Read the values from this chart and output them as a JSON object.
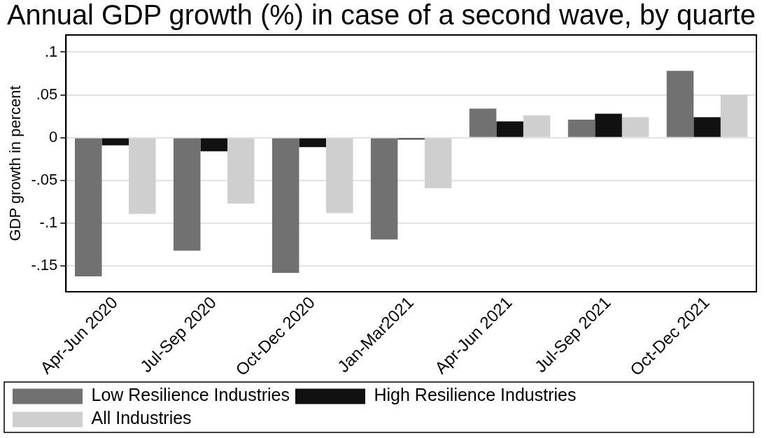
{
  "chart_data": {
    "type": "bar",
    "title": "Annual GDP growth (%) in case of a second wave, by quarte",
    "ylabel": "GDP growth in percent",
    "categories": [
      "Apr-Jun 2020",
      "Jul-Sep 2020",
      "Oct-Dec 2020",
      "Jan-Mar2021",
      "Apr-Jun 2021",
      "Jul-Sep 2021",
      "Oct-Dec 2021"
    ],
    "series": [
      {
        "name": "Low Resilience Industries",
        "color": "#717171",
        "values": [
          -0.162,
          -0.132,
          -0.158,
          -0.119,
          0.034,
          0.021,
          0.078
        ]
      },
      {
        "name": "High Resilience Industries",
        "color": "#111111",
        "values": [
          -0.009,
          -0.016,
          -0.011,
          -0.002,
          0.019,
          0.028,
          0.024
        ]
      },
      {
        "name": "All Industries",
        "color": "#cfcfcf",
        "values": [
          -0.089,
          -0.077,
          -0.088,
          -0.059,
          0.026,
          0.024,
          0.05
        ]
      }
    ],
    "ylim": [
      -0.18,
      0.12
    ],
    "yticks": [
      {
        "value": -0.15,
        "label": "-.15"
      },
      {
        "value": -0.1,
        "label": "-.1"
      },
      {
        "value": -0.05,
        "label": "-.05"
      },
      0,
      {
        "value": 0.05,
        "label": ".05"
      },
      {
        "value": 0.1,
        "label": ".1"
      }
    ],
    "grid": "y",
    "legend": "bottom"
  }
}
